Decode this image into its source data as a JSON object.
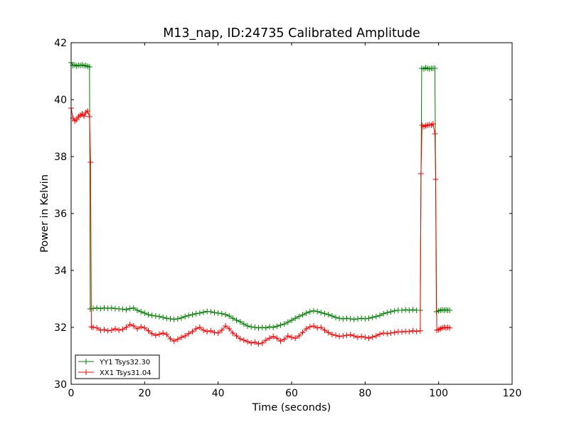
{
  "chart_data": {
    "type": "line",
    "title": "M13_nap, ID:24735 Calibrated Amplitude",
    "xlabel": "Time (seconds)",
    "ylabel": "Power in Kelvin",
    "xlim": [
      0,
      120
    ],
    "ylim": [
      30,
      42
    ],
    "xticks": [
      0,
      20,
      40,
      60,
      80,
      100,
      120
    ],
    "yticks": [
      30,
      32,
      34,
      36,
      38,
      40,
      42
    ],
    "xtick_labels": [
      "0",
      "20",
      "40",
      "60",
      "80",
      "100",
      "120"
    ],
    "ytick_labels": [
      "30",
      "32",
      "34",
      "36",
      "38",
      "40",
      "42"
    ],
    "grid": false,
    "legend_position": "lower-left",
    "marker": "plus",
    "series": [
      {
        "name": "YY1 Tsys32.30",
        "color": "#008000",
        "points": [
          [
            0,
            41.3
          ],
          [
            0.5,
            41.2
          ],
          [
            1,
            41.22
          ],
          [
            1.5,
            41.18
          ],
          [
            2,
            41.21
          ],
          [
            2.5,
            41.2
          ],
          [
            3,
            41.22
          ],
          [
            3.5,
            41.19
          ],
          [
            4,
            41.2
          ],
          [
            4.5,
            41.17
          ],
          [
            5,
            41.15
          ],
          [
            5.2,
            32.65
          ],
          [
            6,
            32.66
          ],
          [
            7,
            32.68
          ],
          [
            8,
            32.66
          ],
          [
            9,
            32.68
          ],
          [
            10,
            32.67
          ],
          [
            11,
            32.68
          ],
          [
            12,
            32.66
          ],
          [
            13,
            32.65
          ],
          [
            14,
            32.64
          ],
          [
            15,
            32.62
          ],
          [
            16,
            32.66
          ],
          [
            17,
            32.68
          ],
          [
            18,
            32.6
          ],
          [
            19,
            32.55
          ],
          [
            20,
            32.5
          ],
          [
            21,
            32.45
          ],
          [
            22,
            32.42
          ],
          [
            23,
            32.4
          ],
          [
            24,
            32.38
          ],
          [
            25,
            32.35
          ],
          [
            26,
            32.32
          ],
          [
            27,
            32.3
          ],
          [
            28,
            32.28
          ],
          [
            29,
            32.3
          ],
          [
            30,
            32.33
          ],
          [
            31,
            32.38
          ],
          [
            32,
            32.42
          ],
          [
            33,
            32.45
          ],
          [
            34,
            32.48
          ],
          [
            35,
            32.5
          ],
          [
            36,
            32.53
          ],
          [
            37,
            32.56
          ],
          [
            38,
            32.55
          ],
          [
            39,
            32.52
          ],
          [
            40,
            32.5
          ],
          [
            41,
            32.48
          ],
          [
            42,
            32.45
          ],
          [
            43,
            32.4
          ],
          [
            44,
            32.32
          ],
          [
            45,
            32.25
          ],
          [
            46,
            32.2
          ],
          [
            47,
            32.12
          ],
          [
            48,
            32.05
          ],
          [
            49,
            32.02
          ],
          [
            50,
            32.0
          ],
          [
            51,
            31.98
          ],
          [
            52,
            32.0
          ],
          [
            53,
            31.98
          ],
          [
            54,
            32.02
          ],
          [
            55,
            32.0
          ],
          [
            56,
            32.04
          ],
          [
            57,
            32.08
          ],
          [
            58,
            32.12
          ],
          [
            59,
            32.18
          ],
          [
            60,
            32.25
          ],
          [
            61,
            32.32
          ],
          [
            62,
            32.38
          ],
          [
            63,
            32.44
          ],
          [
            64,
            32.5
          ],
          [
            65,
            32.55
          ],
          [
            66,
            32.58
          ],
          [
            67,
            32.56
          ],
          [
            68,
            32.52
          ],
          [
            69,
            32.48
          ],
          [
            70,
            32.45
          ],
          [
            71,
            32.4
          ],
          [
            72,
            32.35
          ],
          [
            73,
            32.32
          ],
          [
            74,
            32.3
          ],
          [
            75,
            32.32
          ],
          [
            76,
            32.3
          ],
          [
            77,
            32.28
          ],
          [
            78,
            32.3
          ],
          [
            79,
            32.32
          ],
          [
            80,
            32.3
          ],
          [
            81,
            32.32
          ],
          [
            82,
            32.35
          ],
          [
            83,
            32.38
          ],
          [
            84,
            32.42
          ],
          [
            85,
            32.48
          ],
          [
            86,
            32.52
          ],
          [
            87,
            32.55
          ],
          [
            88,
            32.58
          ],
          [
            89,
            32.6
          ],
          [
            90,
            32.6
          ],
          [
            91,
            32.62
          ],
          [
            92,
            32.6
          ],
          [
            93,
            32.62
          ],
          [
            94,
            32.6
          ],
          [
            95,
            32.6
          ],
          [
            95.4,
            41.1
          ],
          [
            96,
            41.08
          ],
          [
            96.5,
            41.12
          ],
          [
            97,
            41.1
          ],
          [
            97.5,
            41.08
          ],
          [
            98,
            41.1
          ],
          [
            98.5,
            41.1
          ],
          [
            99,
            41.1
          ],
          [
            99.4,
            32.55
          ],
          [
            100,
            32.58
          ],
          [
            100.5,
            32.6
          ],
          [
            101,
            32.62
          ],
          [
            101.5,
            32.6
          ],
          [
            102,
            32.62
          ],
          [
            102.5,
            32.6
          ],
          [
            103,
            32.6
          ]
        ]
      },
      {
        "name": "XX1 Tsys31.04",
        "color": "#ff0000",
        "points": [
          [
            0,
            39.7
          ],
          [
            0.5,
            39.35
          ],
          [
            1,
            39.25
          ],
          [
            1.5,
            39.3
          ],
          [
            2,
            39.4
          ],
          [
            2.5,
            39.45
          ],
          [
            3,
            39.5
          ],
          [
            3.5,
            39.42
          ],
          [
            4,
            39.55
          ],
          [
            4.5,
            39.6
          ],
          [
            5,
            39.4
          ],
          [
            5.3,
            37.8
          ],
          [
            5.5,
            32.02
          ],
          [
            6,
            32.0
          ],
          [
            7,
            31.98
          ],
          [
            8,
            31.9
          ],
          [
            9,
            31.92
          ],
          [
            10,
            31.88
          ],
          [
            11,
            31.9
          ],
          [
            12,
            31.95
          ],
          [
            13,
            31.9
          ],
          [
            14,
            31.93
          ],
          [
            15,
            32.0
          ],
          [
            16,
            32.1
          ],
          [
            17,
            32.05
          ],
          [
            18,
            31.95
          ],
          [
            19,
            32.02
          ],
          [
            20,
            31.98
          ],
          [
            21,
            31.88
          ],
          [
            22,
            31.78
          ],
          [
            23,
            31.72
          ],
          [
            24,
            31.76
          ],
          [
            25,
            31.8
          ],
          [
            26,
            31.75
          ],
          [
            27,
            31.6
          ],
          [
            28,
            31.52
          ],
          [
            29,
            31.58
          ],
          [
            30,
            31.65
          ],
          [
            31,
            31.7
          ],
          [
            32,
            31.78
          ],
          [
            33,
            31.85
          ],
          [
            34,
            31.95
          ],
          [
            35,
            32.0
          ],
          [
            36,
            31.9
          ],
          [
            37,
            31.85
          ],
          [
            38,
            31.88
          ],
          [
            39,
            31.82
          ],
          [
            40,
            31.8
          ],
          [
            41,
            31.9
          ],
          [
            42,
            32.05
          ],
          [
            43,
            31.95
          ],
          [
            44,
            31.8
          ],
          [
            45,
            31.7
          ],
          [
            46,
            31.6
          ],
          [
            47,
            31.55
          ],
          [
            48,
            31.5
          ],
          [
            49,
            31.45
          ],
          [
            50,
            31.48
          ],
          [
            51,
            31.42
          ],
          [
            52,
            31.45
          ],
          [
            53,
            31.55
          ],
          [
            54,
            31.62
          ],
          [
            55,
            31.68
          ],
          [
            56,
            31.62
          ],
          [
            57,
            31.52
          ],
          [
            58,
            31.58
          ],
          [
            59,
            31.7
          ],
          [
            60,
            31.65
          ],
          [
            61,
            31.62
          ],
          [
            62,
            31.7
          ],
          [
            63,
            31.82
          ],
          [
            64,
            31.95
          ],
          [
            65,
            32.02
          ],
          [
            66,
            32.05
          ],
          [
            67,
            31.98
          ],
          [
            68,
            32.0
          ],
          [
            69,
            31.9
          ],
          [
            70,
            31.82
          ],
          [
            71,
            31.75
          ],
          [
            72,
            31.72
          ],
          [
            73,
            31.68
          ],
          [
            74,
            31.7
          ],
          [
            75,
            31.72
          ],
          [
            76,
            31.74
          ],
          [
            77,
            31.7
          ],
          [
            78,
            31.65
          ],
          [
            79,
            31.68
          ],
          [
            80,
            31.65
          ],
          [
            81,
            31.62
          ],
          [
            82,
            31.66
          ],
          [
            83,
            31.7
          ],
          [
            84,
            31.76
          ],
          [
            85,
            31.8
          ],
          [
            86,
            31.78
          ],
          [
            87,
            31.8
          ],
          [
            88,
            31.82
          ],
          [
            89,
            31.85
          ],
          [
            90,
            31.84
          ],
          [
            91,
            31.86
          ],
          [
            92,
            31.85
          ],
          [
            93,
            31.88
          ],
          [
            94,
            31.86
          ],
          [
            95,
            31.88
          ],
          [
            95.2,
            37.4
          ],
          [
            95.5,
            39.1
          ],
          [
            96,
            39.05
          ],
          [
            96.5,
            39.08
          ],
          [
            97,
            39.1
          ],
          [
            97.5,
            39.12
          ],
          [
            98,
            39.1
          ],
          [
            98.5,
            39.15
          ],
          [
            99,
            38.8
          ],
          [
            99.2,
            37.2
          ],
          [
            99.5,
            31.9
          ],
          [
            100,
            31.92
          ],
          [
            100.5,
            31.95
          ],
          [
            101,
            31.98
          ],
          [
            101.5,
            32.0
          ],
          [
            102,
            31.98
          ],
          [
            102.5,
            32.0
          ],
          [
            103,
            31.98
          ]
        ]
      }
    ]
  }
}
